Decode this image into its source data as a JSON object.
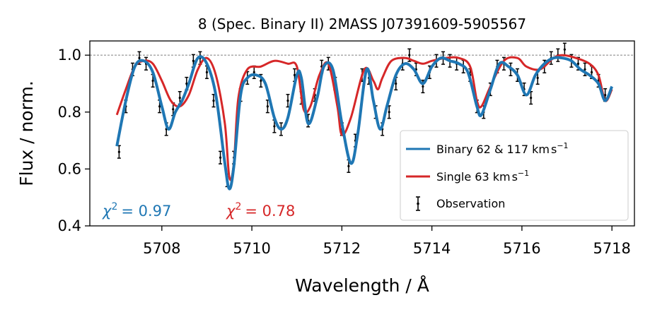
{
  "chart_data": {
    "type": "line",
    "title": "8 (Spec. Binary II) 2MASS J07391609-5905567",
    "xlabel": "Wavelength / Å",
    "ylabel": "Flux / norm.",
    "xlim": [
      5706.4,
      5718.5
    ],
    "ylim": [
      0.4,
      1.05
    ],
    "xticks": [
      "5708",
      "5710",
      "5712",
      "5714",
      "5716",
      "5718"
    ],
    "xtick_values": [
      5708,
      5710,
      5712,
      5714,
      5716,
      5718
    ],
    "yticks": [
      "0.4",
      "0.6",
      "0.8",
      "1.0"
    ],
    "ytick_values": [
      0.4,
      0.6,
      0.8,
      1.0
    ],
    "reference_line": 1.0,
    "grid": false,
    "legend_position": "lower-right",
    "colors": {
      "binary": "#1f77b4",
      "single": "#d62728",
      "observation": "#000000",
      "reference": "#808080"
    },
    "legend": {
      "binary_main": "Binary 62 & 117 km",
      "binary_unit_sup": "−1",
      "single_main": "Single 63 km",
      "single_unit_sup": "−1",
      "observation": "Observation",
      "unit_s": "s"
    },
    "annotations": {
      "binary_chi_value": "= 0.97",
      "single_chi_value": "= 0.78",
      "chi_symbol": "χ",
      "chi_exponent": "2"
    },
    "series": [
      {
        "name": "Binary 62 & 117 km s−1",
        "x": [
          5707.0,
          5707.2,
          5707.4,
          5707.6,
          5707.8,
          5708.0,
          5708.15,
          5708.3,
          5708.45,
          5708.6,
          5708.8,
          5709.0,
          5709.2,
          5709.4,
          5709.5,
          5709.6,
          5709.75,
          5709.9,
          5710.1,
          5710.3,
          5710.5,
          5710.65,
          5710.8,
          5711.0,
          5711.1,
          5711.25,
          5711.45,
          5711.6,
          5711.8,
          5712.0,
          5712.2,
          5712.35,
          5712.55,
          5712.7,
          5712.85,
          5713.0,
          5713.2,
          5713.4,
          5713.6,
          5713.8,
          5714.0,
          5714.2,
          5714.4,
          5714.6,
          5714.8,
          5715.0,
          5715.1,
          5715.3,
          5715.5,
          5715.7,
          5715.9,
          5716.1,
          5716.3,
          5716.5,
          5716.7,
          5716.9,
          5717.1,
          5717.3,
          5717.5,
          5717.7,
          5717.85,
          5718.0
        ],
        "y": [
          0.68,
          0.84,
          0.96,
          0.98,
          0.94,
          0.82,
          0.74,
          0.8,
          0.84,
          0.9,
          0.99,
          0.97,
          0.86,
          0.62,
          0.53,
          0.61,
          0.86,
          0.92,
          0.93,
          0.9,
          0.78,
          0.74,
          0.78,
          0.93,
          0.92,
          0.76,
          0.85,
          0.96,
          0.95,
          0.76,
          0.62,
          0.72,
          0.95,
          0.84,
          0.74,
          0.82,
          0.93,
          0.97,
          0.95,
          0.9,
          0.96,
          0.99,
          0.98,
          0.97,
          0.94,
          0.82,
          0.79,
          0.88,
          0.97,
          0.96,
          0.93,
          0.86,
          0.93,
          0.97,
          0.99,
          0.99,
          0.98,
          0.95,
          0.93,
          0.9,
          0.84,
          0.89
        ]
      },
      {
        "name": "Single 63 km s−1",
        "x": [
          5707.0,
          5707.2,
          5707.4,
          5707.6,
          5707.8,
          5708.0,
          5708.2,
          5708.4,
          5708.6,
          5708.8,
          5709.0,
          5709.2,
          5709.4,
          5709.5,
          5709.6,
          5709.7,
          5709.9,
          5710.2,
          5710.5,
          5710.8,
          5711.0,
          5711.15,
          5711.3,
          5711.5,
          5711.7,
          5711.9,
          5712.0,
          5712.2,
          5712.5,
          5712.7,
          5712.8,
          5712.9,
          5713.1,
          5713.4,
          5713.6,
          5713.8,
          5714.0,
          5714.3,
          5714.6,
          5714.85,
          5715.0,
          5715.1,
          5715.3,
          5715.6,
          5715.9,
          5716.1,
          5716.4,
          5716.7,
          5716.9,
          5717.2,
          5717.5,
          5717.7,
          5717.85,
          5718.0
        ],
        "y": [
          0.79,
          0.88,
          0.96,
          0.98,
          0.97,
          0.91,
          0.84,
          0.82,
          0.86,
          0.95,
          0.99,
          0.93,
          0.76,
          0.57,
          0.62,
          0.85,
          0.95,
          0.96,
          0.98,
          0.97,
          0.96,
          0.81,
          0.82,
          0.93,
          0.97,
          0.82,
          0.72,
          0.78,
          0.95,
          0.91,
          0.88,
          0.92,
          0.98,
          0.99,
          0.98,
          0.97,
          0.98,
          0.99,
          0.99,
          0.96,
          0.84,
          0.82,
          0.89,
          0.98,
          0.99,
          0.96,
          0.95,
          0.99,
          1.0,
          0.99,
          0.97,
          0.93,
          0.84,
          0.88
        ]
      },
      {
        "name": "Observation",
        "x": [
          5707.05,
          5707.2,
          5707.35,
          5707.5,
          5707.65,
          5707.8,
          5707.95,
          5708.1,
          5708.25,
          5708.4,
          5708.55,
          5708.7,
          5708.85,
          5709.0,
          5709.15,
          5709.3,
          5709.45,
          5709.6,
          5709.75,
          5709.9,
          5710.05,
          5710.2,
          5710.35,
          5710.5,
          5710.65,
          5710.8,
          5710.95,
          5711.1,
          5711.25,
          5711.4,
          5711.55,
          5711.7,
          5711.85,
          5712.0,
          5712.15,
          5712.3,
          5712.45,
          5712.6,
          5712.75,
          5712.9,
          5713.05,
          5713.2,
          5713.35,
          5713.5,
          5713.65,
          5713.8,
          5713.95,
          5714.1,
          5714.25,
          5714.4,
          5714.55,
          5714.7,
          5714.85,
          5715.0,
          5715.15,
          5715.3,
          5715.45,
          5715.6,
          5715.75,
          5715.9,
          5716.05,
          5716.2,
          5716.35,
          5716.5,
          5716.65,
          5716.8,
          5716.95,
          5717.1,
          5717.25,
          5717.4,
          5717.55,
          5717.7,
          5717.85
        ],
        "y": [
          0.66,
          0.82,
          0.95,
          0.99,
          0.97,
          0.91,
          0.82,
          0.74,
          0.81,
          0.85,
          0.9,
          0.98,
          0.99,
          0.94,
          0.84,
          0.64,
          0.56,
          0.64,
          0.86,
          0.92,
          0.94,
          0.91,
          0.82,
          0.75,
          0.74,
          0.84,
          0.93,
          0.85,
          0.77,
          0.86,
          0.96,
          0.97,
          0.9,
          0.74,
          0.61,
          0.7,
          0.93,
          0.92,
          0.8,
          0.74,
          0.8,
          0.9,
          0.97,
          1.0,
          0.95,
          0.89,
          0.94,
          0.98,
          0.99,
          0.98,
          0.97,
          0.96,
          0.93,
          0.82,
          0.8,
          0.88,
          0.96,
          0.97,
          0.95,
          0.93,
          0.88,
          0.85,
          0.92,
          0.96,
          0.99,
          1.0,
          1.02,
          0.98,
          0.97,
          0.95,
          0.94,
          0.91,
          0.86
        ],
        "err": 0.022
      }
    ]
  }
}
